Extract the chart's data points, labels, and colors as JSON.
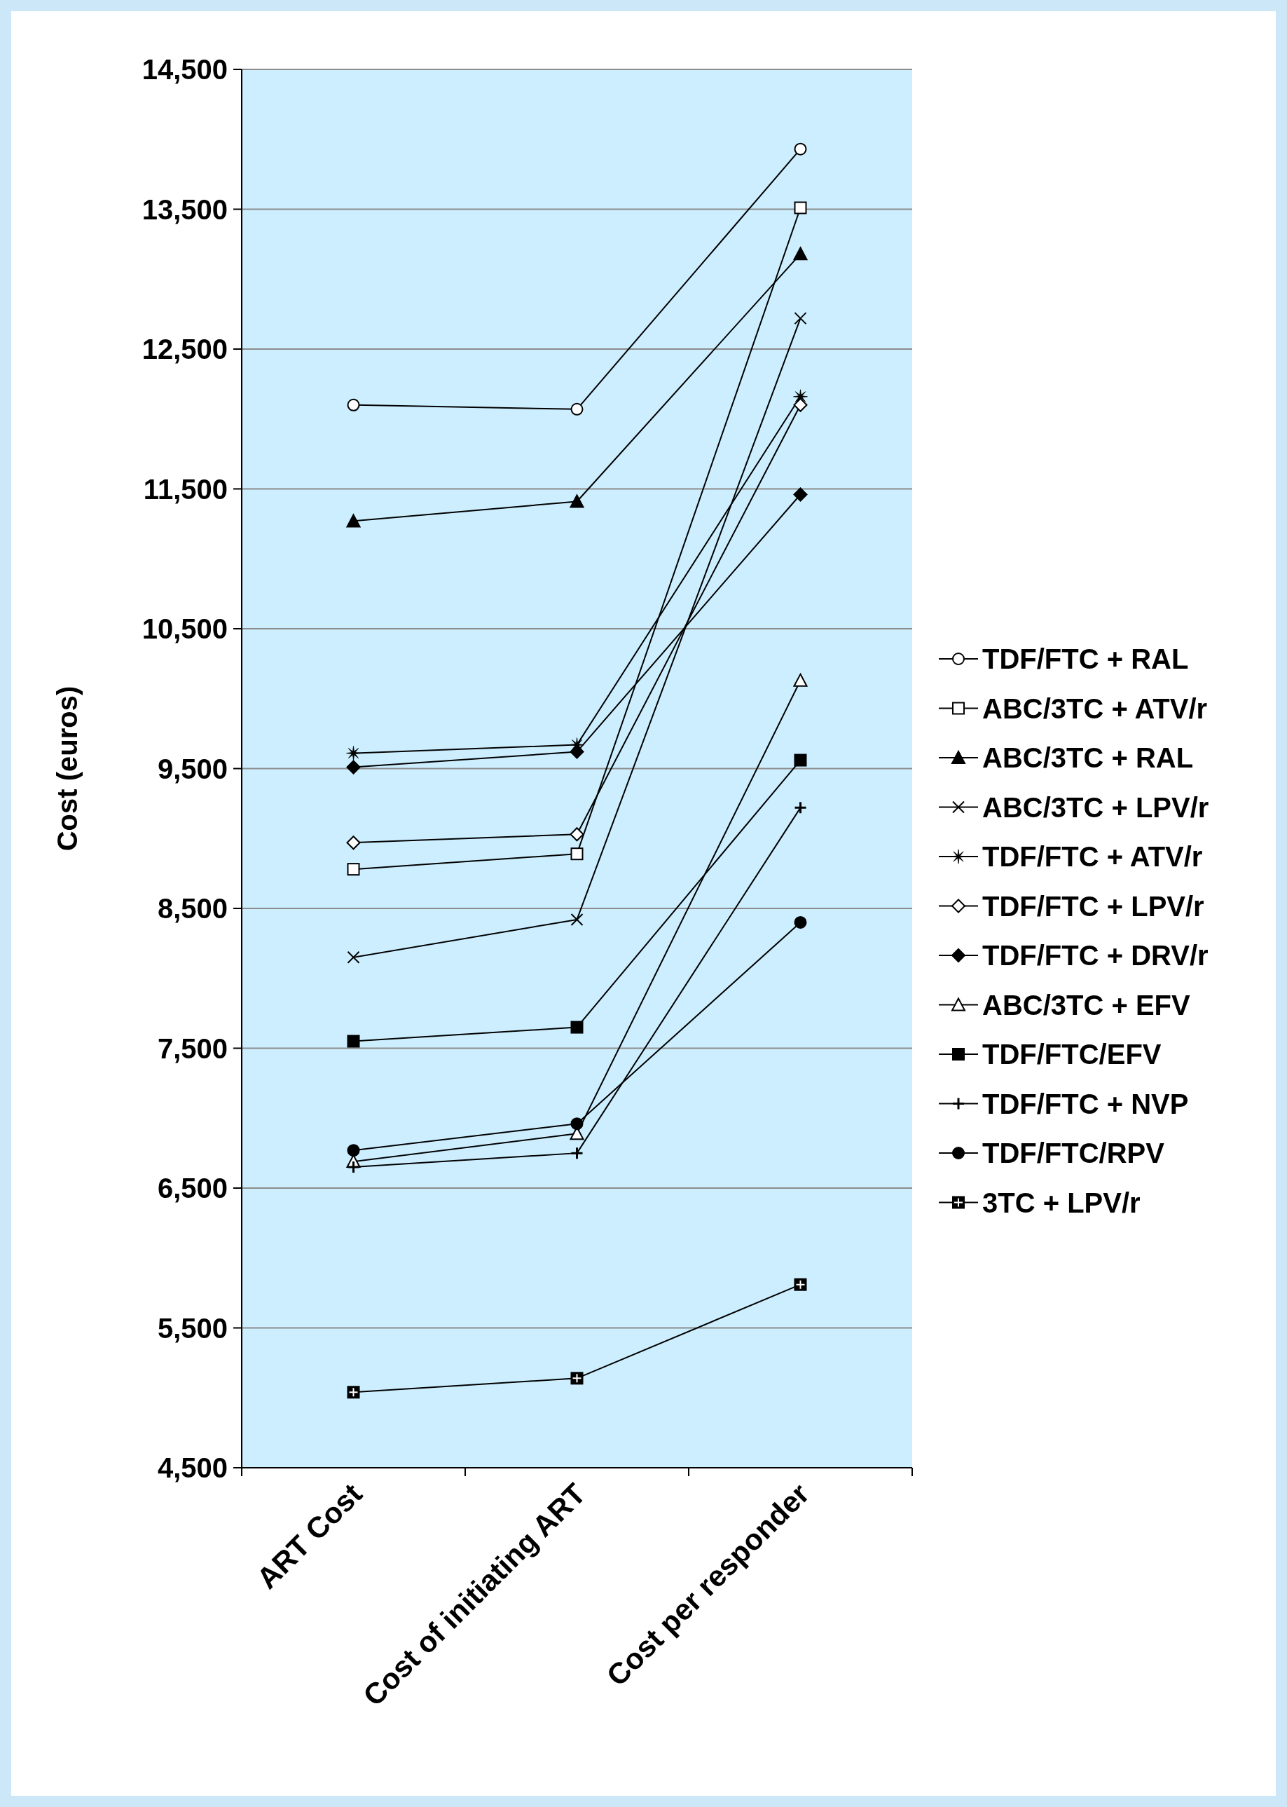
{
  "chart_data": {
    "type": "line",
    "ylabel": "Cost (euros)",
    "categories": [
      "ART Cost",
      "Cost of initiating ART",
      "Cost per responder"
    ],
    "ylim": [
      4500,
      14500
    ],
    "yticks": [
      {
        "value": 4500,
        "label": "4,500"
      },
      {
        "value": 5500,
        "label": "5,500"
      },
      {
        "value": 6500,
        "label": "6,500"
      },
      {
        "value": 7500,
        "label": "7,500"
      },
      {
        "value": 8500,
        "label": "8,500"
      },
      {
        "value": 9500,
        "label": "9,500"
      },
      {
        "value": 10500,
        "label": "10,500"
      },
      {
        "value": 11500,
        "label": "11,500"
      },
      {
        "value": 12500,
        "label": "12,500"
      },
      {
        "value": 13500,
        "label": "13,500"
      },
      {
        "value": 14500,
        "label": "14,500"
      }
    ],
    "grid": "y",
    "legend": "right",
    "line_style": "solid",
    "series": [
      {
        "name": "TDF/FTC + RAL",
        "color": "#000000",
        "marker": "circle-open",
        "values": [
          12100,
          12070,
          13930
        ]
      },
      {
        "name": "ABC/3TC + ATV/r",
        "color": "#000000",
        "marker": "square-open",
        "values": [
          8780,
          8890,
          13510
        ]
      },
      {
        "name": "ABC/3TC + RAL",
        "color": "#000000",
        "marker": "triangle",
        "values": [
          11270,
          11410,
          13180
        ]
      },
      {
        "name": "ABC/3TC + LPV/r",
        "color": "#000000",
        "marker": "cross",
        "values": [
          8150,
          8420,
          12720
        ]
      },
      {
        "name": "TDF/FTC + ATV/r",
        "color": "#000000",
        "marker": "star",
        "values": [
          9610,
          9670,
          12160
        ]
      },
      {
        "name": "TDF/FTC + LPV/r",
        "color": "#000000",
        "marker": "diamond-open",
        "values": [
          8970,
          9030,
          12100
        ]
      },
      {
        "name": "TDF/FTC + DRV/r",
        "color": "#000000",
        "marker": "diamond",
        "values": [
          9510,
          9620,
          11460
        ]
      },
      {
        "name": "ABC/3TC + EFV",
        "color": "#000000",
        "marker": "triangle-open",
        "values": [
          6690,
          6890,
          10130
        ]
      },
      {
        "name": "TDF/FTC/EFV",
        "color": "#000000",
        "marker": "square",
        "values": [
          7550,
          7650,
          9560
        ]
      },
      {
        "name": "TDF/FTC + NVP",
        "color": "#000000",
        "marker": "plus",
        "values": [
          6650,
          6750,
          9220
        ]
      },
      {
        "name": "TDF/FTC/RPV",
        "color": "#000000",
        "marker": "circle",
        "values": [
          6770,
          6960,
          8400
        ]
      },
      {
        "name": "3TC + LPV/r",
        "color": "#000000",
        "marker": "square-plus",
        "values": [
          5040,
          5140,
          5810
        ]
      }
    ]
  }
}
